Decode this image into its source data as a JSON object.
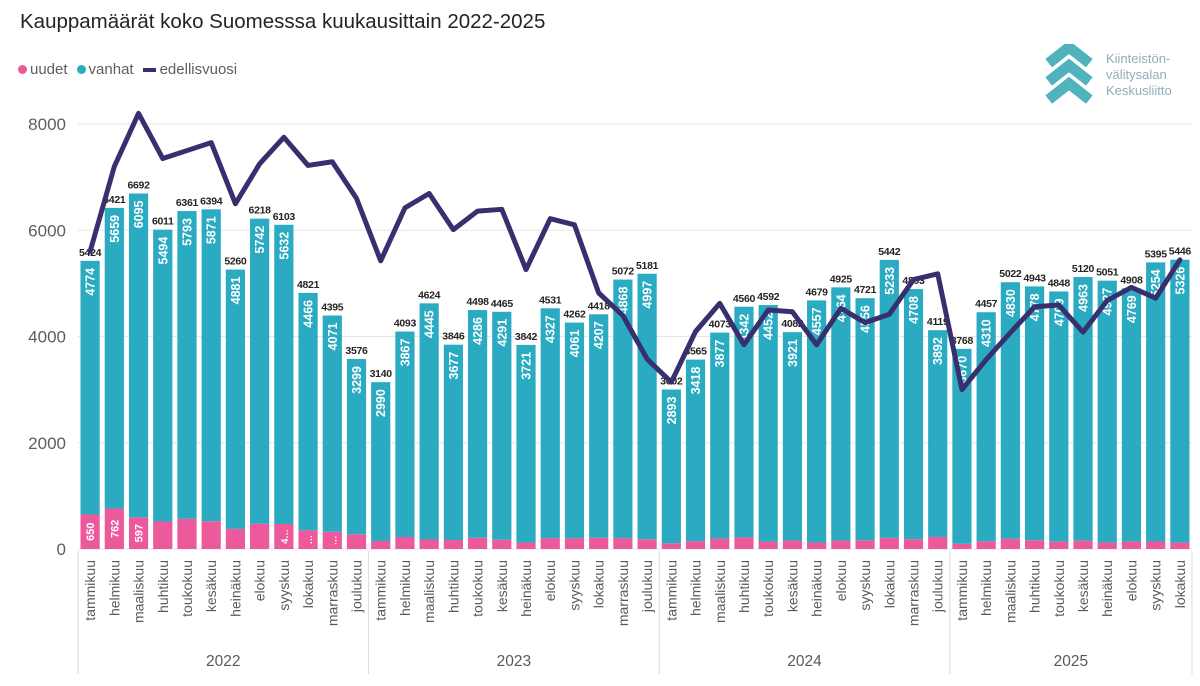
{
  "title": "Kauppamäärät koko Suomesssa kuukausittain 2022-2025",
  "legend": [
    {
      "label": "uudet",
      "color": "#EC5A9C",
      "marker": "dot"
    },
    {
      "label": "vanhat",
      "color": "#2AABC2",
      "marker": "dot"
    },
    {
      "label": "edellisvuosi",
      "color": "#38306E",
      "marker": "dash"
    }
  ],
  "logo": {
    "lines": [
      "Kiinteistön-",
      "välitysalan",
      "Keskusliitto"
    ],
    "chevron_color": "#4FB2BD",
    "text_color": "#8FAFB5"
  },
  "colors": {
    "uudet": "#EC5A9C",
    "vanhat": "#2AABC2",
    "edellisvuosi": "#38306E",
    "grid": "#E6E6E6",
    "axis_text": "#605E5C",
    "month_text": "#595959",
    "total_label": "#252423",
    "inner_label": "#FFFFFF",
    "separator": "#D9D9D9"
  },
  "chart_data": {
    "type": "bar",
    "subtype": "stacked-bars-with-line",
    "title": "Kauppamäärät koko Suomesssa kuukausittain 2022-2025",
    "xlabel": "",
    "ylabel": "",
    "ylim": [
      0,
      8400
    ],
    "y_ticks": [
      0,
      2000,
      4000,
      6000,
      8000
    ],
    "grid": true,
    "legend_position": "top-left",
    "series_legend": [
      "uudet",
      "vanhat",
      "edellisvuosi"
    ],
    "years": [
      {
        "year": "2022",
        "months": [
          "tammikuu",
          "helmikuu",
          "maaliskuu",
          "huhtikuu",
          "toukokuu",
          "kesäkuu",
          "heinäkuu",
          "elokuu",
          "syyskuu",
          "lokakuu",
          "marraskuu",
          "joulukuu"
        ],
        "uudet": [
          650,
          762,
          597,
          517,
          568,
          523,
          379,
          476,
          471,
          355,
          324,
          277
        ],
        "vanhat": [
          4774,
          5659,
          6095,
          5494,
          5793,
          5871,
          4881,
          5742,
          5632,
          4466,
          4071,
          3299
        ],
        "totals": [
          5424,
          6421,
          6692,
          6011,
          6361,
          6394,
          5260,
          6218,
          6103,
          4821,
          4395,
          3576
        ],
        "edellisvuosi": [
          5600,
          7200,
          8200,
          7350,
          7500,
          7650,
          6500,
          7250,
          7750,
          7220,
          7290,
          6600
        ],
        "uudet_labels": [
          "650",
          "762",
          "597",
          "",
          "",
          "",
          "",
          "",
          "4…",
          "…",
          "…",
          ""
        ]
      },
      {
        "year": "2023",
        "months": [
          "tammikuu",
          "helmikuu",
          "maaliskuu",
          "huhtikuu",
          "toukokuu",
          "kesäkuu",
          "heinäkuu",
          "elokuu",
          "syyskuu",
          "lokakuu",
          "marraskuu",
          "joulukuu"
        ],
        "uudet": [
          150,
          226,
          179,
          169,
          212,
          174,
          121,
          204,
          201,
          211,
          204,
          184
        ],
        "vanhat": [
          2990,
          3867,
          4445,
          3677,
          4286,
          4291,
          3721,
          4327,
          4061,
          4207,
          4868,
          4997
        ],
        "totals": [
          3140,
          4093,
          4624,
          3846,
          4498,
          4465,
          3842,
          4531,
          4262,
          4418,
          5072,
          5181
        ],
        "edellisvuosi": [
          5424,
          6421,
          6692,
          6011,
          6361,
          6394,
          5260,
          6218,
          6103,
          4821,
          4395,
          3576
        ],
        "uudet_labels": [
          "",
          "",
          "",
          "",
          "",
          "",
          "",
          "",
          "",
          "",
          "",
          ""
        ]
      },
      {
        "year": "2024",
        "months": [
          "tammikuu",
          "helmikuu",
          "maaliskuu",
          "huhtikuu",
          "toukokuu",
          "kesäkuu",
          "heinäkuu",
          "elokuu",
          "syyskuu",
          "lokakuu",
          "marraskuu",
          "joulukuu"
        ],
        "uudet": [
          109,
          147,
          196,
          218,
          140,
          161,
          122,
          161,
          165,
          209,
          185,
          227
        ],
        "vanhat": [
          2893,
          3418,
          3877,
          4342,
          4452,
          3921,
          4557,
          4764,
          4556,
          5233,
          4708,
          3892
        ],
        "totals": [
          3002,
          3565,
          4073,
          4560,
          4592,
          4082,
          4679,
          4925,
          4721,
          5442,
          4893,
          4119
        ],
        "edellisvuosi": [
          3140,
          4093,
          4624,
          3846,
          4498,
          4465,
          3842,
          4531,
          4262,
          4418,
          5072,
          5181
        ],
        "uudet_labels": [
          "",
          "",
          "",
          "",
          "",
          "",
          "",
          "",
          "",
          "",
          "",
          ""
        ]
      },
      {
        "year": "2025",
        "months": [
          "tammikuu",
          "helmikuu",
          "maaliskuu",
          "huhtikuu",
          "toukokuu",
          "kesäkuu",
          "heinäkuu",
          "elokuu",
          "syyskuu",
          "lokakuu"
        ],
        "uudet": [
          98,
          147,
          192,
          165,
          139,
          157,
          124,
          139,
          141,
          120
        ],
        "vanhat": [
          3670,
          4310,
          4830,
          4778,
          4709,
          4963,
          4927,
          4769,
          5254,
          5326
        ],
        "totals": [
          3768,
          4457,
          5022,
          4943,
          4848,
          5120,
          5051,
          4908,
          5395,
          5446
        ],
        "edellisvuosi": [
          3002,
          3565,
          4073,
          4560,
          4592,
          4082,
          4679,
          4925,
          4721,
          5442
        ],
        "uudet_labels": [
          "",
          "",
          "",
          "",
          "",
          "",
          "",
          "",
          "",
          ""
        ]
      }
    ]
  }
}
